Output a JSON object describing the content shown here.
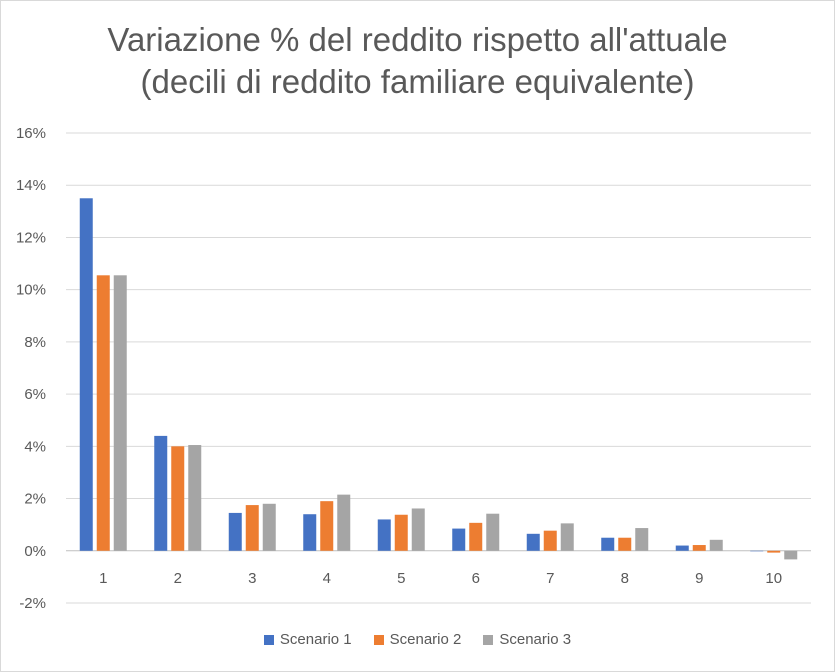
{
  "chart_data": {
    "type": "bar",
    "title_line1": "Variazione % del reddito rispetto all'attuale",
    "title_line2": "(decili di reddito familiare equivalente)",
    "categories": [
      "1",
      "2",
      "3",
      "4",
      "5",
      "6",
      "7",
      "8",
      "9",
      "10"
    ],
    "series": [
      {
        "name": "Scenario 1",
        "color": "#4472C4",
        "values": [
          13.5,
          4.4,
          1.45,
          1.4,
          1.2,
          0.85,
          0.65,
          0.5,
          0.2,
          0.0
        ]
      },
      {
        "name": "Scenario 2",
        "color": "#ED7D31",
        "values": [
          10.55,
          4.0,
          1.75,
          1.9,
          1.38,
          1.07,
          0.77,
          0.5,
          0.22,
          -0.07
        ]
      },
      {
        "name": "Scenario 3",
        "color": "#A5A5A5",
        "values": [
          10.55,
          4.05,
          1.8,
          2.15,
          1.62,
          1.42,
          1.05,
          0.87,
          0.42,
          -0.33
        ]
      }
    ],
    "ylim": [
      -2,
      16
    ],
    "yticks": [
      -2,
      0,
      2,
      4,
      6,
      8,
      10,
      12,
      14,
      16
    ],
    "ytick_labels": [
      "-2%",
      "0%",
      "2%",
      "4%",
      "6%",
      "8%",
      "10%",
      "12%",
      "14%",
      "16%"
    ],
    "grid": true,
    "legend_position": "bottom"
  }
}
